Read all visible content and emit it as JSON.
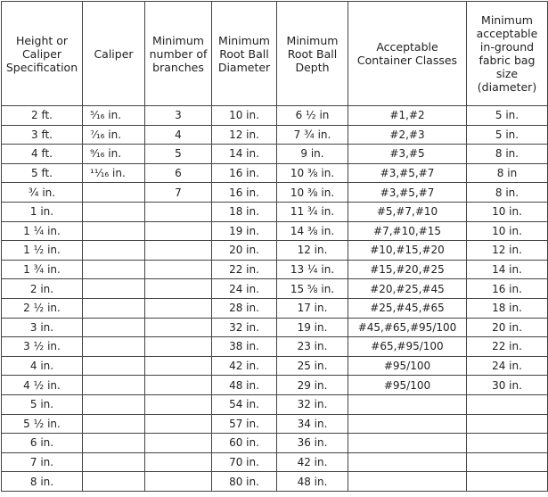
{
  "table": {
    "header": [
      "Height or Caliper Specification",
      "Caliper",
      "Minimum number of branches",
      "Minimum Root Ball Diameter",
      "Minimum Root Ball Depth",
      "Acceptable Container Classes",
      "Minimum acceptable in-ground fabric bag size (diameter)"
    ],
    "rows": [
      [
        "2 ft.",
        "⁵⁄₁₆ in.",
        "3",
        "10 in.",
        "6 ½ in",
        "#1,#2",
        "5 in."
      ],
      [
        "3 ft.",
        "⁷⁄₁₆ in.",
        "4",
        "12 in.",
        "7 ¾ in.",
        "#2,#3",
        "5 in."
      ],
      [
        "4 ft.",
        "⁹⁄₁₆ in.",
        "5",
        "14 in.",
        "9 in.",
        "#3,#5",
        "8 in."
      ],
      [
        "5 ft.",
        "¹¹⁄₁₆ in.",
        "6",
        "16 in.",
        "10 ⅜ in.",
        "#3,#5,#7",
        "8 in"
      ],
      [
        "¾ in.",
        null,
        "7",
        "16 in.",
        "10 ⅜ in.",
        "#3,#5,#7",
        "8 in."
      ],
      [
        "1 in.",
        null,
        null,
        "18 in.",
        "11 ¾ in.",
        "#5,#7,#10",
        "10 in."
      ],
      [
        "1 ¼ in.",
        null,
        null,
        "19 in.",
        "14 ⅜ in.",
        "#7,#10,#15",
        "10 in."
      ],
      [
        "1 ½ in.",
        null,
        null,
        "20 in.",
        "12 in.",
        "#10,#15,#20",
        "12 in."
      ],
      [
        "1 ¾ in.",
        null,
        null,
        "22 in.",
        "13 ¼ in.",
        "#15,#20,#25",
        "14 in."
      ],
      [
        "2 in.",
        null,
        null,
        "24 in.",
        "15 ⅝ in.",
        "#20,#25,#45",
        "16 in."
      ],
      [
        "2 ½ in.",
        null,
        null,
        "28 in.",
        "17 in.",
        "#25,#45,#65",
        "18 in."
      ],
      [
        "3 in.",
        null,
        null,
        "32 in.",
        "19 in.",
        "#45,#65,#95/100",
        "20 in."
      ],
      [
        "3 ½ in.",
        null,
        null,
        "38 in.",
        "23 in.",
        "#65,#95/100",
        "22 in."
      ],
      [
        "4 in.",
        null,
        null,
        "42 in.",
        "25 in.",
        "#95/100",
        "24 in."
      ],
      [
        "4 ½ in.",
        null,
        null,
        "48 in.",
        "29 in.",
        "#95/100",
        "30 in."
      ],
      [
        "5 in.",
        null,
        null,
        "54 in.",
        "32 in.",
        null,
        null
      ],
      [
        "5 ½ in.",
        null,
        null,
        "57 in.",
        "34 in.",
        null,
        null
      ],
      [
        "6 in.",
        null,
        null,
        "60 in.",
        "36 in.",
        null,
        null
      ],
      [
        "7 in.",
        null,
        null,
        "70 in.",
        "42 in.",
        null,
        null
      ],
      [
        "8 in.",
        null,
        null,
        "80 in.",
        "48 in.",
        null,
        null
      ]
    ]
  }
}
